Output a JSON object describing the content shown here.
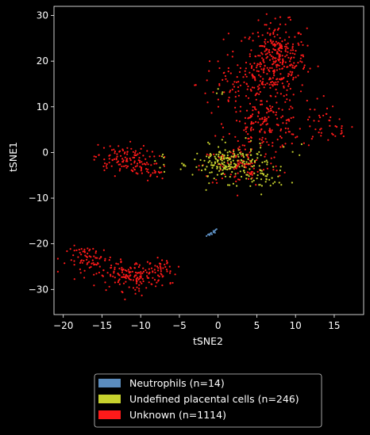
{
  "chart_data": {
    "type": "scatter",
    "title": "",
    "xlabel": "tSNE2",
    "ylabel": "tSNE1",
    "xlim": [
      -21.2,
      18.8
    ],
    "ylim": [
      -35.5,
      32
    ],
    "xticks": [
      -20,
      -15,
      -10,
      -5,
      0,
      5,
      10,
      15
    ],
    "yticks": [
      -30,
      -20,
      -10,
      0,
      10,
      20,
      30
    ],
    "background": "#000000",
    "grid": false,
    "legend_position": "below-center",
    "series": [
      {
        "name": "Neutrophils (n=14)",
        "color": "#5b8cbe",
        "count": 14,
        "points": [
          [
            -1.5,
            -18.3
          ],
          [
            -1.3,
            -18.0
          ],
          [
            -1.2,
            -17.9
          ],
          [
            -1.0,
            -17.8
          ],
          [
            -0.9,
            -17.6
          ],
          [
            -0.6,
            -17.5
          ],
          [
            -0.5,
            -17.3
          ],
          [
            -0.4,
            -17.1
          ],
          [
            -0.3,
            -16.9
          ],
          [
            -0.2,
            -16.8
          ],
          [
            -0.4,
            -17.6
          ],
          [
            -0.8,
            -17.9
          ],
          [
            -1.1,
            -18.1
          ],
          [
            -0.6,
            -17.2
          ]
        ]
      },
      {
        "name": "Undefined placental cells (n=246)",
        "color": "#c7d22e",
        "count": 246,
        "clusters": [
          {
            "cx": 1.5,
            "cy": -2.5,
            "sx": 3.2,
            "sy": 2.6,
            "n": 200
          },
          {
            "cx": 6.0,
            "cy": -6.0,
            "sx": 1.6,
            "sy": 2.0,
            "n": 30
          },
          {
            "cx": -7.0,
            "cy": -2.5,
            "sx": 1.5,
            "sy": 2.5,
            "n": 8
          },
          {
            "cx": 0.5,
            "cy": 13.5,
            "sx": 0.6,
            "sy": 0.8,
            "n": 4
          },
          {
            "cx": 11.0,
            "cy": 1.5,
            "sx": 1.5,
            "sy": 2.0,
            "n": 4
          }
        ]
      },
      {
        "name": "Unknown (n=1114)",
        "color": "#ff1a1a",
        "count": 1114,
        "clusters": [
          {
            "cx": 7.5,
            "cy": 20.0,
            "sx": 2.6,
            "sy": 5.5,
            "n": 330
          },
          {
            "cx": 2.5,
            "cy": 15.0,
            "sx": 3.5,
            "sy": 4.5,
            "n": 80
          },
          {
            "cx": 6.0,
            "cy": 6.0,
            "sx": 3.2,
            "sy": 3.5,
            "n": 160
          },
          {
            "cx": 3.0,
            "cy": -3.0,
            "sx": 3.5,
            "sy": 3.0,
            "n": 110
          },
          {
            "cx": 13.0,
            "cy": 7.0,
            "sx": 1.5,
            "sy": 4.0,
            "n": 30
          },
          {
            "cx": 16.0,
            "cy": 5.0,
            "sx": 0.8,
            "sy": 1.0,
            "n": 12
          },
          {
            "cx": -12.5,
            "cy": -1.5,
            "sx": 2.4,
            "sy": 2.2,
            "n": 110
          },
          {
            "cx": -8.5,
            "cy": -4.0,
            "sx": 1.5,
            "sy": 2.0,
            "n": 30
          },
          {
            "cx": -11.0,
            "cy": -27.0,
            "sx": 3.0,
            "sy": 2.2,
            "n": 150
          },
          {
            "cx": -16.5,
            "cy": -23.5,
            "sx": 2.0,
            "sy": 2.0,
            "n": 70
          },
          {
            "cx": -7.5,
            "cy": -25.5,
            "sx": 1.0,
            "sy": 1.5,
            "n": 32
          }
        ]
      }
    ]
  }
}
